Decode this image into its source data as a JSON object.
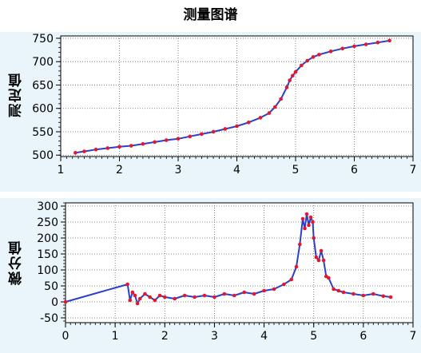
{
  "title": "测量图谱",
  "chart_data": [
    {
      "type": "line",
      "ylabel": "测定值",
      "xlabel": "",
      "xlim": [
        1,
        7
      ],
      "ylim": [
        497,
        755
      ],
      "xticks": [
        1,
        2,
        3,
        4,
        5,
        6,
        7
      ],
      "yticks": [
        500,
        550,
        600,
        650,
        700,
        750
      ],
      "grid": true,
      "series": [
        {
          "line_color": "#2b3fc9",
          "marker_color": "#e3182d",
          "x": [
            1.25,
            1.4,
            1.6,
            1.8,
            2.0,
            2.2,
            2.4,
            2.6,
            2.8,
            3.0,
            3.2,
            3.4,
            3.6,
            3.8,
            4.0,
            4.2,
            4.4,
            4.55,
            4.65,
            4.75,
            4.85,
            4.9,
            4.95,
            5.0,
            5.1,
            5.2,
            5.3,
            5.4,
            5.6,
            5.8,
            6.0,
            6.2,
            6.4,
            6.6
          ],
          "y": [
            505,
            508,
            512,
            515,
            518,
            520,
            524,
            528,
            532,
            535,
            540,
            545,
            550,
            556,
            562,
            570,
            580,
            590,
            603,
            620,
            645,
            660,
            670,
            678,
            692,
            702,
            710,
            715,
            722,
            728,
            733,
            737,
            741,
            745
          ]
        }
      ]
    },
    {
      "type": "line",
      "ylabel": "微分值",
      "xlabel": "",
      "xlim": [
        0,
        7
      ],
      "ylim": [
        -65,
        310
      ],
      "xticks": [
        0,
        1,
        2,
        3,
        4,
        5,
        6,
        7
      ],
      "yticks": [
        -50,
        0,
        50,
        100,
        150,
        200,
        250,
        300
      ],
      "grid": true,
      "series": [
        {
          "line_color": "#2b3fc9",
          "marker_color": "#e3182d",
          "x": [
            0,
            1.25,
            1.3,
            1.35,
            1.4,
            1.45,
            1.5,
            1.6,
            1.7,
            1.8,
            1.9,
            2.0,
            2.2,
            2.4,
            2.6,
            2.8,
            3.0,
            3.2,
            3.4,
            3.6,
            3.8,
            4.0,
            4.2,
            4.4,
            4.55,
            4.65,
            4.72,
            4.78,
            4.82,
            4.86,
            4.9,
            4.94,
            4.98,
            5.0,
            5.05,
            5.1,
            5.15,
            5.2,
            5.25,
            5.3,
            5.4,
            5.5,
            5.6,
            5.8,
            6.0,
            6.2,
            6.4,
            6.55
          ],
          "y": [
            0,
            55,
            5,
            30,
            20,
            -5,
            10,
            25,
            15,
            5,
            20,
            15,
            10,
            20,
            15,
            20,
            15,
            25,
            20,
            30,
            25,
            35,
            40,
            55,
            70,
            110,
            180,
            260,
            230,
            275,
            240,
            265,
            250,
            200,
            140,
            130,
            160,
            130,
            80,
            75,
            40,
            35,
            30,
            25,
            20,
            25,
            18,
            15
          ]
        }
      ]
    }
  ]
}
